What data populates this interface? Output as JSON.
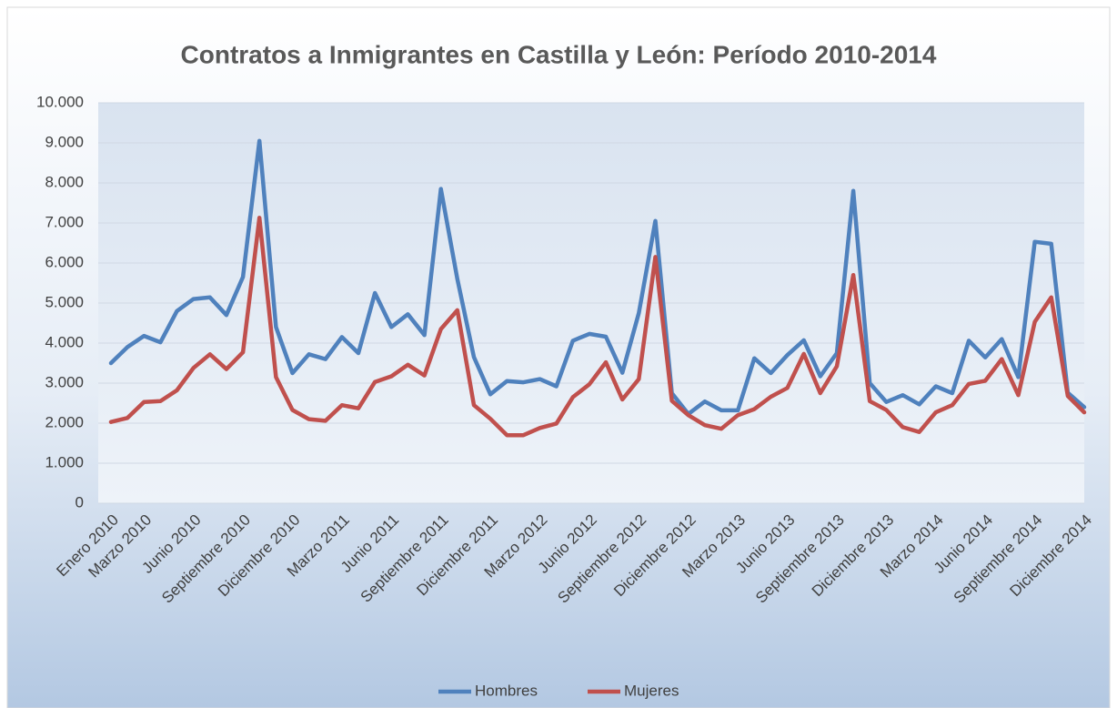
{
  "chart_data": {
    "type": "line",
    "title": "Contratos a Inmigrantes en Castilla y León: Período 2010-2014",
    "categories": [
      "Enero 2010",
      null,
      "Marzo 2010",
      null,
      null,
      "Junio 2010",
      null,
      null,
      "Septiembre 2010",
      null,
      null,
      "Diciembre 2010",
      null,
      null,
      "Marzo 2011",
      null,
      null,
      "Junio 2011",
      null,
      null,
      "Septiembre 2011",
      null,
      null,
      "Diciembre 2011",
      null,
      null,
      "Marzo 2012",
      null,
      null,
      "Junio 2012",
      null,
      null,
      "Septiembre 2012",
      null,
      null,
      "Diciembre 2012",
      null,
      null,
      "Marzo 2013",
      null,
      null,
      "Junio 2013",
      null,
      null,
      "Septiembre 2013",
      null,
      null,
      "Diciembre 2013",
      null,
      null,
      "Marzo 2014",
      null,
      null,
      "Junio 2014",
      null,
      null,
      "Septiembre 2014",
      null,
      null,
      "Diciembre 2014"
    ],
    "series": [
      {
        "name": "Hombres",
        "color": "#4f81bd",
        "values": [
          3500,
          3900,
          4180,
          4020,
          4800,
          5100,
          5140,
          4700,
          5650,
          9050,
          4400,
          3250,
          3720,
          3600,
          4150,
          3750,
          5250,
          4400,
          4720,
          4200,
          7850,
          5600,
          3650,
          2720,
          3050,
          3020,
          3100,
          2920,
          4060,
          4230,
          4160,
          3260,
          4750,
          7050,
          2750,
          2230,
          2540,
          2320,
          2320,
          3620,
          3250,
          3700,
          4070,
          3170,
          3750,
          7800,
          3000,
          2530,
          2700,
          2470,
          2920,
          2750,
          4060,
          3640,
          4100,
          3150,
          6530,
          6480,
          2760,
          2400
        ]
      },
      {
        "name": "Mujeres",
        "color": "#c0504d",
        "values": [
          2030,
          2130,
          2530,
          2550,
          2820,
          3380,
          3720,
          3350,
          3770,
          7130,
          3150,
          2330,
          2100,
          2060,
          2450,
          2370,
          3030,
          3170,
          3460,
          3190,
          4350,
          4820,
          2450,
          2110,
          1700,
          1700,
          1880,
          1990,
          2650,
          2970,
          3520,
          2590,
          3100,
          6150,
          2560,
          2200,
          1950,
          1860,
          2200,
          2350,
          2660,
          2880,
          3730,
          2750,
          3420,
          5700,
          2550,
          2330,
          1900,
          1780,
          2270,
          2450,
          2980,
          3060,
          3600,
          2700,
          4530,
          5140,
          2680,
          2270
        ]
      }
    ],
    "ylim": [
      0,
      10000
    ],
    "yticks": [
      0,
      {
        "value": 1000,
        "label": "1.000"
      },
      {
        "value": 2000,
        "label": "2.000"
      },
      {
        "value": 3000,
        "label": "3.000"
      },
      {
        "value": 4000,
        "label": "4.000"
      },
      {
        "value": 5000,
        "label": "5.000"
      },
      {
        "value": 6000,
        "label": "6.000"
      },
      {
        "value": 7000,
        "label": "7.000"
      },
      {
        "value": 8000,
        "label": "8.000"
      },
      {
        "value": 9000,
        "label": "9.000"
      },
      {
        "value": 10000,
        "label": "10.000"
      }
    ],
    "grid": true,
    "legend": "bottom"
  }
}
